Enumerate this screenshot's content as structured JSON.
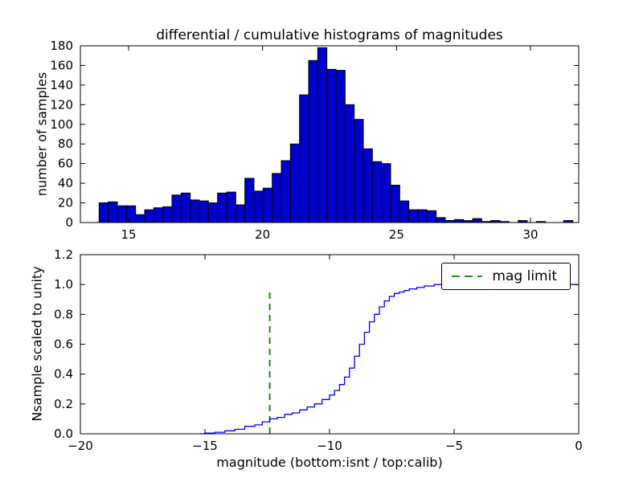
{
  "colors": {
    "background": "#ffffff",
    "axes": "#000000",
    "bar_fill": "#0000cd",
    "bar_edge": "#000000",
    "line_blue": "#0000ff",
    "mag_limit_green": "#008000"
  },
  "chart_data": [
    {
      "type": "bar",
      "subplot": "top",
      "title": "differential / cumulative histograms of magnitudes",
      "ylabel": "number of samples",
      "xlim": [
        13.2,
        31.8
      ],
      "ylim": [
        0,
        180
      ],
      "xtick_values": [
        15,
        20,
        25,
        30
      ],
      "xtick_labels": [
        "15",
        "20",
        "25",
        "30"
      ],
      "ytick_values": [
        0,
        20,
        40,
        60,
        80,
        100,
        120,
        140,
        160,
        180
      ],
      "ytick_labels": [
        "0",
        "20",
        "40",
        "60",
        "80",
        "100",
        "120",
        "140",
        "160",
        "180"
      ],
      "bin_start": 13.9,
      "bin_width": 0.34,
      "counts": [
        20,
        21,
        17,
        17,
        8,
        13,
        15,
        16,
        28,
        30,
        23,
        22,
        20,
        30,
        31,
        18,
        45,
        32,
        35,
        50,
        63,
        80,
        130,
        165,
        178,
        156,
        155,
        120,
        105,
        75,
        62,
        60,
        38,
        22,
        13,
        13,
        12,
        5,
        2,
        3,
        2,
        4,
        1,
        2,
        1,
        0,
        2,
        0,
        1,
        0,
        0,
        2
      ],
      "grid": false
    },
    {
      "type": "line",
      "subplot": "bottom",
      "ylabel": "Nsample scaled to unity",
      "xlabel": "magnitude (bottom:isnt / top:calib)",
      "xlim": [
        -20,
        0
      ],
      "ylim": [
        0,
        1.2
      ],
      "xtick_values": [
        -20,
        -15,
        -10,
        -5,
        0
      ],
      "xtick_labels": [
        "−20",
        "−15",
        "−10",
        "−5",
        "0"
      ],
      "ytick_values": [
        0,
        0.2,
        0.4,
        0.6,
        0.8,
        1.0,
        1.2
      ],
      "ytick_labels": [
        "0.0",
        "0.2",
        "0.4",
        "0.6",
        "0.8",
        "1.0",
        "1.2"
      ],
      "step_points": [
        [
          -15.2,
          0.0
        ],
        [
          -15.0,
          0.005
        ],
        [
          -14.6,
          0.01
        ],
        [
          -14.2,
          0.02
        ],
        [
          -13.8,
          0.03
        ],
        [
          -13.4,
          0.05
        ],
        [
          -13.0,
          0.06
        ],
        [
          -12.7,
          0.08
        ],
        [
          -12.4,
          0.1
        ],
        [
          -12.1,
          0.11
        ],
        [
          -11.8,
          0.13
        ],
        [
          -11.5,
          0.14
        ],
        [
          -11.2,
          0.16
        ],
        [
          -10.9,
          0.18
        ],
        [
          -10.6,
          0.2
        ],
        [
          -10.3,
          0.23
        ],
        [
          -10.0,
          0.26
        ],
        [
          -9.8,
          0.29
        ],
        [
          -9.6,
          0.33
        ],
        [
          -9.4,
          0.38
        ],
        [
          -9.2,
          0.44
        ],
        [
          -9.0,
          0.52
        ],
        [
          -8.8,
          0.6
        ],
        [
          -8.6,
          0.68
        ],
        [
          -8.4,
          0.75
        ],
        [
          -8.2,
          0.8
        ],
        [
          -8.0,
          0.85
        ],
        [
          -7.8,
          0.89
        ],
        [
          -7.6,
          0.92
        ],
        [
          -7.4,
          0.94
        ],
        [
          -7.2,
          0.95
        ],
        [
          -7.0,
          0.96
        ],
        [
          -6.8,
          0.97
        ],
        [
          -6.5,
          0.98
        ],
        [
          -6.2,
          0.99
        ],
        [
          -5.8,
          1.0
        ],
        [
          0.0,
          1.0
        ]
      ],
      "mag_limit": {
        "x": -12.4,
        "y_from": 0.0,
        "y_to": 0.97,
        "label": "mag limit"
      },
      "legend": {
        "label": "mag limit",
        "position": "upper right"
      },
      "grid": false
    }
  ]
}
